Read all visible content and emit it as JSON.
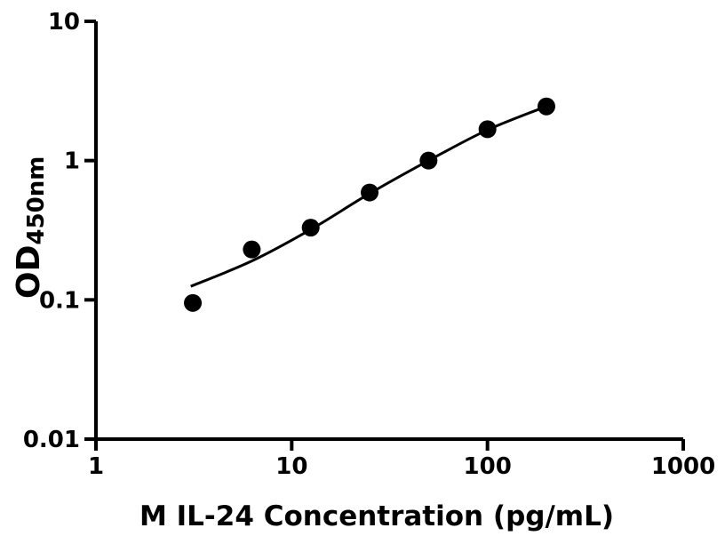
{
  "chart_data": {
    "type": "scatter",
    "title": "",
    "xlabel": "M IL-24 Concentration (pg/mL)",
    "ylabel_main": "OD",
    "ylabel_sub": "450nm",
    "x_scale": "log",
    "y_scale": "log",
    "xlim": [
      1,
      1000
    ],
    "ylim": [
      0.01,
      10
    ],
    "x_ticks": [
      1,
      10,
      100,
      1000
    ],
    "x_tick_labels": [
      "1",
      "10",
      "100",
      "1000"
    ],
    "y_ticks": [
      0.01,
      0.1,
      1,
      10
    ],
    "y_tick_labels": [
      "0.01",
      "0.1",
      "1",
      "10"
    ],
    "grid": false,
    "legend": "none",
    "marker_shape": "circle",
    "marker_radius": 10,
    "marker_color": "#000000",
    "line_color": "#000000",
    "axis_color": "#000000",
    "background_color": "#ffffff",
    "points": [
      {
        "concentration": 3.125,
        "od": 0.095
      },
      {
        "concentration": 6.25,
        "od": 0.23
      },
      {
        "concentration": 12.5,
        "od": 0.33
      },
      {
        "concentration": 25,
        "od": 0.59
      },
      {
        "concentration": 50,
        "od": 1.0
      },
      {
        "concentration": 100,
        "od": 1.68
      },
      {
        "concentration": 200,
        "od": 2.45
      }
    ],
    "fit_curve": [
      [
        3.05,
        0.125
      ],
      [
        6.25,
        0.19
      ],
      [
        12.5,
        0.32
      ],
      [
        25,
        0.58
      ],
      [
        50,
        1.0
      ],
      [
        100,
        1.66
      ],
      [
        200,
        2.45
      ]
    ]
  }
}
